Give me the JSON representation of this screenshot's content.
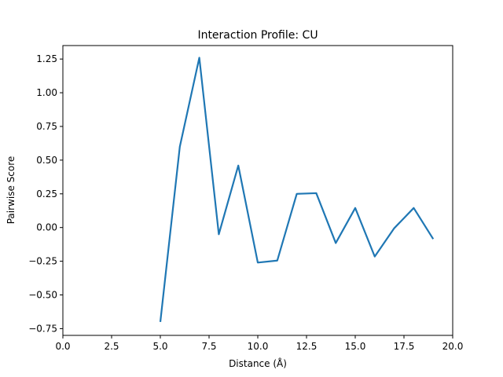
{
  "chart_data": {
    "type": "line",
    "title": "Interaction Profile: CU",
    "xlabel": "Distance (Å)",
    "ylabel": "Pairwise Score",
    "xlim": [
      0,
      20
    ],
    "ylim": [
      -0.8,
      1.35
    ],
    "xticks": [
      0,
      2.5,
      5,
      7.5,
      10,
      12.5,
      15,
      17.5,
      20
    ],
    "xtick_labels": [
      "0.0",
      "2.5",
      "5.0",
      "7.5",
      "10.0",
      "12.5",
      "15.0",
      "17.5",
      "20.0"
    ],
    "yticks": [
      -0.75,
      -0.5,
      -0.25,
      0,
      0.25,
      0.5,
      0.75,
      1.0,
      1.25
    ],
    "ytick_labels": [
      "−0.75",
      "−0.50",
      "−0.25",
      "0.00",
      "0.25",
      "0.50",
      "0.75",
      "1.00",
      "1.25"
    ],
    "grid": false,
    "series": [
      {
        "color": "#1f77b4",
        "x": [
          5,
          6,
          7,
          8,
          9,
          10,
          11,
          12,
          13,
          14,
          15,
          16,
          17,
          18,
          19
        ],
        "y": [
          -0.7,
          0.6,
          1.26,
          -0.05,
          0.46,
          -0.26,
          -0.245,
          0.25,
          0.255,
          -0.115,
          0.145,
          -0.215,
          -0.005,
          0.145,
          -0.085
        ]
      }
    ]
  }
}
